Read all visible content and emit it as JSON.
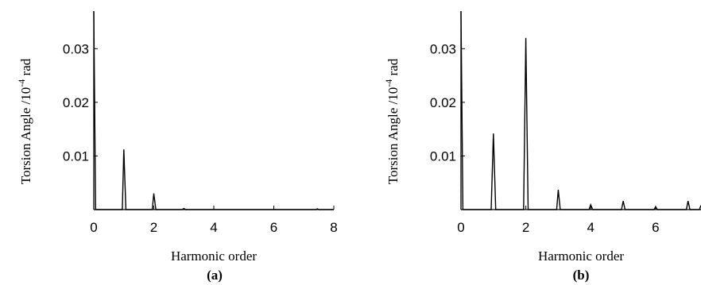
{
  "chart_data": [
    {
      "type": "line",
      "panel_label": "(a)",
      "xlabel": "Harmonic order",
      "ylabel_base": "Torsion Angle /10",
      "ylabel_exponent": "-4",
      "ylabel_unit": " rad",
      "xlim": [
        0,
        8
      ],
      "ylim": [
        0,
        0.037
      ],
      "xticks": [
        "0",
        "2",
        "4",
        "6",
        "8"
      ],
      "yticks": [
        "0.01",
        "0.02",
        "0.03"
      ],
      "ytick_values": [
        0.01,
        0.02,
        0.03
      ],
      "xtick_values": [
        0,
        2,
        4,
        6,
        8
      ],
      "series": [
        {
          "points": [
            [
              0,
              0.037
            ],
            [
              0.06,
              0
            ],
            [
              0.95,
              0
            ],
            [
              1.0,
              0.0112
            ],
            [
              1.07,
              0
            ],
            [
              1.95,
              0
            ],
            [
              2.0,
              0.003
            ],
            [
              2.07,
              0
            ],
            [
              2.95,
              0
            ],
            [
              3.0,
              0.0002
            ],
            [
              3.06,
              0
            ],
            [
              7.4,
              0
            ],
            [
              7.45,
              0.00015
            ],
            [
              7.5,
              0
            ],
            [
              8,
              0
            ]
          ]
        }
      ]
    },
    {
      "type": "line",
      "panel_label": "(b)",
      "xlabel": "Harmonic order",
      "ylabel_base": "Torsion Angle /10",
      "ylabel_exponent": "-4",
      "ylabel_unit": " rad",
      "xlim": [
        0,
        7.4
      ],
      "ylim": [
        0,
        0.037
      ],
      "xticks": [
        "0",
        "2",
        "4",
        "6",
        "8"
      ],
      "yticks": [
        "0.01",
        "0.02",
        "0.03"
      ],
      "ytick_values": [
        0.01,
        0.02,
        0.03
      ],
      "xtick_values": [
        0,
        2,
        4,
        6,
        8
      ],
      "series": [
        {
          "points": [
            [
              0,
              0.037
            ],
            [
              0.06,
              0
            ],
            [
              0.93,
              0
            ],
            [
              1.0,
              0.0142
            ],
            [
              1.07,
              0
            ],
            [
              1.93,
              0
            ],
            [
              2.0,
              0.032
            ],
            [
              2.07,
              0
            ],
            [
              2.95,
              0
            ],
            [
              3.0,
              0.0037
            ],
            [
              3.06,
              0
            ],
            [
              3.95,
              0
            ],
            [
              4.0,
              0.0009
            ],
            [
              4.06,
              0
            ],
            [
              4.95,
              0
            ],
            [
              5.0,
              0.0016
            ],
            [
              5.06,
              0
            ],
            [
              5.95,
              0
            ],
            [
              6.0,
              0.0005
            ],
            [
              6.06,
              0
            ],
            [
              6.95,
              0
            ],
            [
              7.0,
              0.0016
            ],
            [
              7.06,
              0
            ],
            [
              7.35,
              0
            ],
            [
              7.4,
              0.0008
            ]
          ]
        }
      ]
    }
  ]
}
